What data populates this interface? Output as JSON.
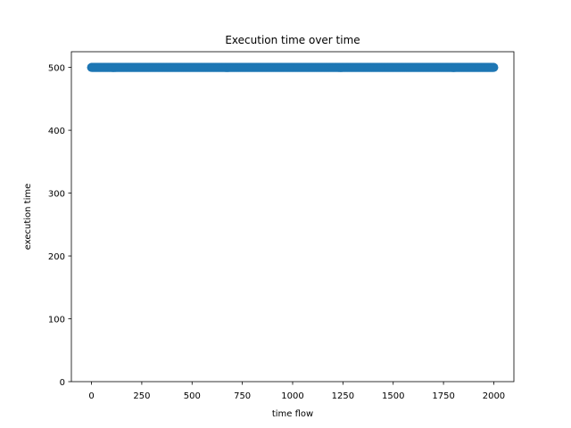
{
  "chart_data": {
    "type": "scatter",
    "title": "Execution time over time",
    "xlabel": "time flow",
    "ylabel": "execution time",
    "xlim": [
      -100,
      2100
    ],
    "ylim": [
      0,
      525
    ],
    "x_ticks": [
      0,
      250,
      500,
      750,
      1000,
      1250,
      1500,
      1750,
      2000
    ],
    "y_ticks": [
      0,
      100,
      200,
      300,
      400,
      500
    ],
    "grid": false,
    "series": [
      {
        "x_start": 0,
        "x_end": 2000,
        "x_step": 1,
        "y": 500,
        "color": "#1f77b4"
      }
    ]
  }
}
